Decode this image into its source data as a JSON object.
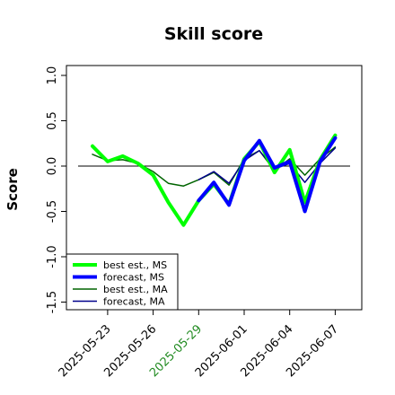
{
  "chart_data": {
    "type": "line",
    "title": "Skill score",
    "ylabel": "Score",
    "xlabel": "",
    "ylim": [
      -1.5,
      1.0
    ],
    "yticks": [
      "-1.5",
      "-1.0",
      "-0.5",
      "0.0",
      "0.5",
      "1.0"
    ],
    "xtick_labels": [
      {
        "label": "2025-05-23",
        "color": "#000000"
      },
      {
        "label": "2025-05-26",
        "color": "#000000"
      },
      {
        "label": "2025-05-29",
        "color": "#228b22"
      },
      {
        "label": "2025-06-01",
        "color": "#000000"
      },
      {
        "label": "2025-06-04",
        "color": "#000000"
      },
      {
        "label": "2025-06-07",
        "color": "#000000"
      }
    ],
    "x": [
      "2025-05-22",
      "2025-05-23",
      "2025-05-24",
      "2025-05-25",
      "2025-05-26",
      "2025-05-27",
      "2025-05-28",
      "2025-05-29",
      "2025-05-30",
      "2025-05-31",
      "2025-06-01",
      "2025-06-02",
      "2025-06-03",
      "2025-06-04",
      "2025-06-05",
      "2025-06-06",
      "2025-06-07"
    ],
    "reference_line": 0,
    "legend_position": "bottom-left",
    "series": [
      {
        "name": "best est., MS",
        "color": "#00ff00",
        "width": 4,
        "values": [
          0.22,
          0.05,
          0.11,
          0.03,
          -0.1,
          -0.4,
          -0.65,
          -0.38,
          -0.2,
          -0.42,
          0.08,
          0.27,
          -0.07,
          0.18,
          -0.4,
          0.07,
          0.34
        ]
      },
      {
        "name": "forecast, MS",
        "color": "#0000ff",
        "width": 4,
        "values": [
          null,
          null,
          null,
          null,
          null,
          null,
          null,
          -0.38,
          -0.18,
          -0.43,
          0.06,
          0.28,
          -0.02,
          0.05,
          -0.5,
          0.05,
          0.31
        ]
      },
      {
        "name": "best est., MA",
        "color": "#006400",
        "width": 1.5,
        "values": [
          0.13,
          0.06,
          0.07,
          0.03,
          -0.06,
          -0.19,
          -0.22,
          -0.15,
          -0.07,
          -0.21,
          0.08,
          0.17,
          -0.05,
          0.08,
          -0.1,
          0.08,
          0.21
        ]
      },
      {
        "name": "forecast, MA",
        "color": "#00008b",
        "width": 1.5,
        "values": [
          null,
          null,
          null,
          null,
          null,
          null,
          null,
          -0.15,
          -0.06,
          -0.19,
          0.06,
          0.17,
          -0.03,
          0.03,
          -0.18,
          0.03,
          0.2
        ]
      }
    ]
  }
}
